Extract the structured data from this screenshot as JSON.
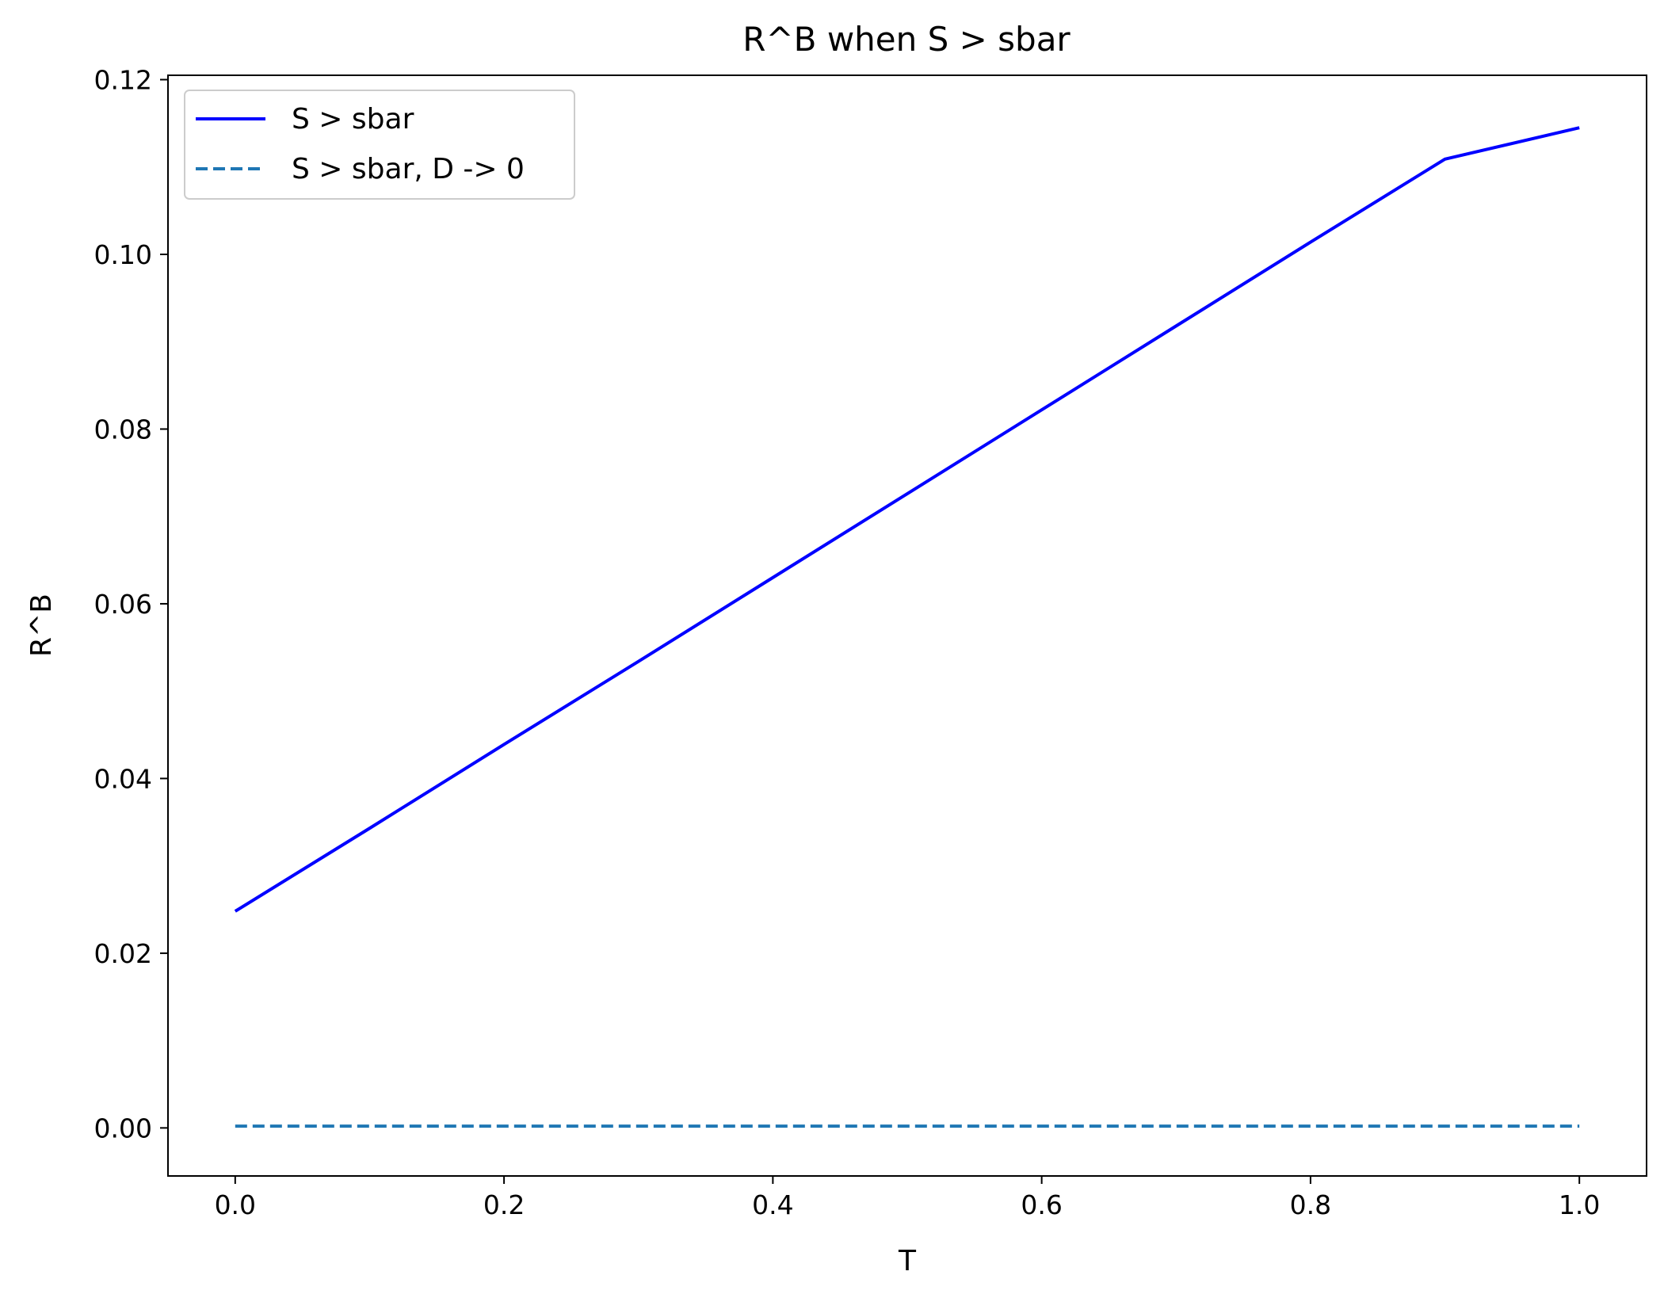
{
  "chart_data": {
    "type": "line",
    "title": "R^B when S > sbar",
    "xlabel": "T",
    "ylabel": "R^B",
    "xlim": [
      -0.05,
      1.05
    ],
    "ylim": [
      -0.0055,
      0.1205
    ],
    "xticks": [
      0.0,
      0.2,
      0.4,
      0.6,
      0.8,
      1.0
    ],
    "xtick_labels": [
      "0.0",
      "0.2",
      "0.4",
      "0.6",
      "0.8",
      "1.0"
    ],
    "yticks": [
      0.0,
      0.02,
      0.04,
      0.06,
      0.08,
      0.1,
      0.12
    ],
    "ytick_labels": [
      "0.00",
      "0.02",
      "0.04",
      "0.06",
      "0.08",
      "0.10",
      "0.12"
    ],
    "grid": false,
    "legend_position": "top-left",
    "series": [
      {
        "name": "S > sbar",
        "color": "#0000ff",
        "style": "solid",
        "x": [
          0.0,
          0.1,
          0.2,
          0.3,
          0.4,
          0.5,
          0.6,
          0.7,
          0.8,
          0.9,
          1.0
        ],
        "y": [
          0.0248,
          0.0343,
          0.0439,
          0.0534,
          0.063,
          0.0726,
          0.0822,
          0.0918,
          0.1014,
          0.1109,
          0.1145
        ]
      },
      {
        "name": "S > sbar, D -> 0",
        "color": "#1f77b4",
        "style": "dashed",
        "x": [
          0.0,
          1.0
        ],
        "y": [
          0.0002,
          0.0002
        ]
      }
    ]
  }
}
